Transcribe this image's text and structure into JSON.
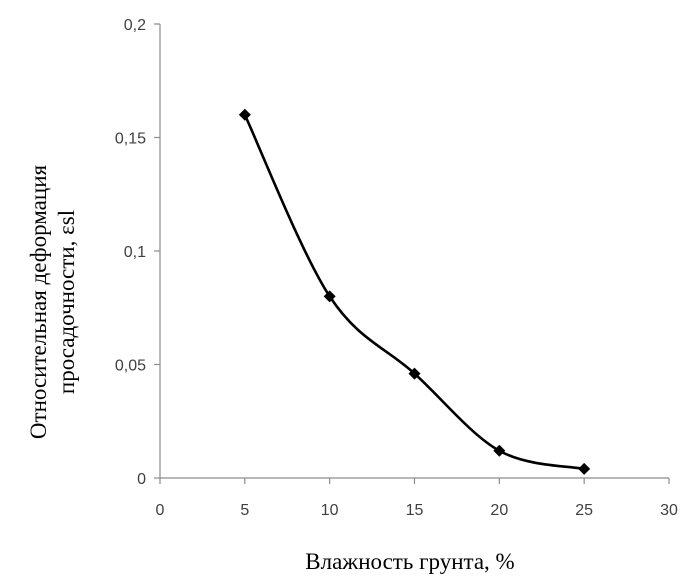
{
  "chart_data": {
    "type": "line",
    "title": "",
    "xlabel": "Влажность грунта, %",
    "ylabel_line1": "Относительная деформация",
    "ylabel_line2": "просадочности, εsl",
    "xlim": [
      0,
      30
    ],
    "ylim": [
      0,
      0.2
    ],
    "x_ticks": [
      0,
      5,
      10,
      15,
      20,
      25,
      30
    ],
    "x_tick_labels": [
      "0",
      "5",
      "10",
      "15",
      "20",
      "25",
      "30"
    ],
    "y_ticks": [
      0,
      0.05,
      0.1,
      0.15,
      0.2
    ],
    "y_tick_labels": [
      "0",
      "0,05",
      "0,1",
      "0,15",
      "0,2"
    ],
    "grid": false,
    "legend": "none",
    "smooth": true,
    "marker": "diamond",
    "series": [
      {
        "color": "#000000",
        "x": [
          5,
          10,
          15,
          20,
          25
        ],
        "y": [
          0.16,
          0.08,
          0.046,
          0.012,
          0.004
        ]
      }
    ]
  }
}
